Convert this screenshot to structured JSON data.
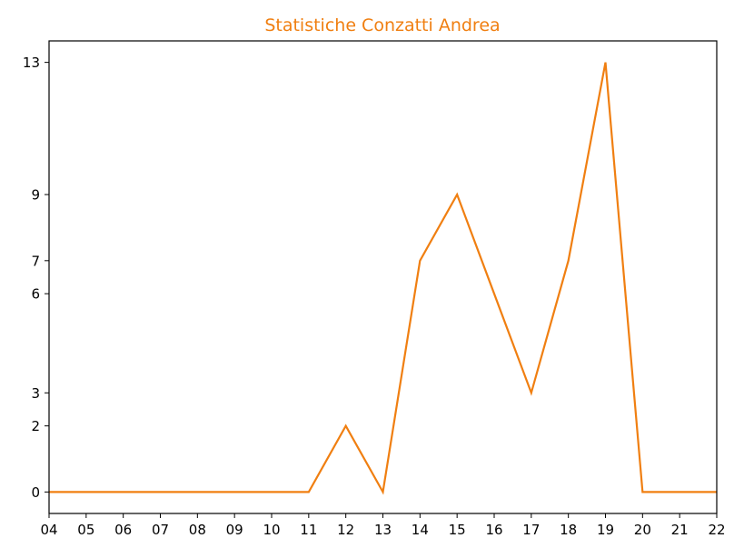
{
  "chart_data": {
    "type": "line",
    "title": "Statistiche Conzatti Andrea",
    "xlabel": "",
    "ylabel": "",
    "x": [
      "04",
      "05",
      "06",
      "07",
      "08",
      "09",
      "10",
      "11",
      "12",
      "13",
      "14",
      "15",
      "16",
      "17",
      "18",
      "19",
      "20",
      "21",
      "22"
    ],
    "series": [
      {
        "values": [
          0,
          0,
          0,
          0,
          0,
          0,
          0,
          0,
          2,
          0,
          7,
          9,
          6,
          3,
          7,
          13,
          0,
          0,
          0
        ]
      }
    ],
    "yticks": [
      0,
      2,
      3,
      6,
      7,
      9,
      13
    ],
    "ylim": [
      -0.65,
      13.65
    ],
    "grid": false,
    "legend": "none",
    "color": "#f07f11"
  }
}
